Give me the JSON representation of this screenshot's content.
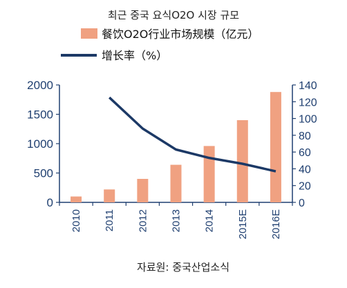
{
  "chart_data": {
    "type": "bar",
    "title": "최근 중국 요식O2O 시장 규모",
    "source": "자료원: 중국산업소식",
    "categories": [
      "2010",
      "2011",
      "2012",
      "2013",
      "2014",
      "2015E",
      "2016E"
    ],
    "series": [
      {
        "name": "餐饮O2O行业市场规模（亿元）",
        "type": "bar",
        "axis": "left",
        "color": "#f0a181",
        "values": [
          100,
          220,
          400,
          640,
          960,
          1400,
          1880
        ]
      },
      {
        "name": "增长率（%）",
        "type": "line",
        "axis": "right",
        "color": "#1c3966",
        "values": [
          null,
          125,
          88,
          63,
          53,
          46,
          37
        ]
      }
    ],
    "y_left": {
      "ylim": [
        0,
        2000
      ],
      "ticks": [
        0,
        500,
        1000,
        1500,
        2000
      ]
    },
    "y_right": {
      "ylim": [
        0,
        140
      ],
      "ticks": [
        0,
        20,
        40,
        60,
        80,
        100,
        120,
        140
      ]
    },
    "grid": false,
    "legend": "top-left"
  }
}
